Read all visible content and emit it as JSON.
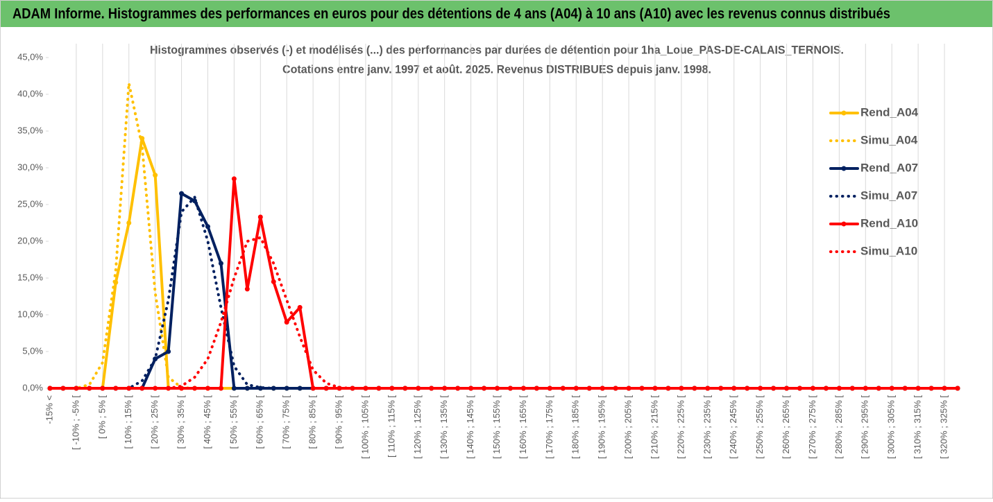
{
  "header": {
    "title": "ADAM Informe. Histogrammes des performances en euros pour des détentions de 4 ans (A04) à 10 ans (A10) avec les revenus connus distribués"
  },
  "chart_data": {
    "type": "line",
    "title": [
      "Histogrammes observés (-) et modélisés (...) des performances par durées de détention pour 1ha_Loue_PAS-DE-CALAIS_TERNOIS.",
      "Cotations entre janv. 1997 et août. 2025. Revenus DISTRIBUES depuis janv. 1998."
    ],
    "categories": [
      "-15% <",
      null,
      "[ -10% ; -5% [",
      null,
      "[ 0% ; 5% [",
      null,
      "[ 10% ; 15% [",
      null,
      "[ 20% ; 25% [",
      null,
      "[ 30% ; 35% [",
      null,
      "[ 40% ; 45% [",
      null,
      "[ 50% ; 55% [",
      null,
      "[ 60% ; 65% [",
      null,
      "[ 70% ; 75% [",
      null,
      "[ 80% ; 85% [",
      null,
      "[ 90% ; 95% [",
      null,
      "[ 100% ; 105% [",
      null,
      "[ 110% ; 115% [",
      null,
      "[ 120% ; 125% [",
      null,
      "[ 130% ; 135% [",
      null,
      "[ 140% ; 145% [",
      null,
      "[ 150% ; 155% [",
      null,
      "[ 160% ; 165% [",
      null,
      "[ 170% ; 175% [",
      null,
      "[ 180% ; 185% [",
      null,
      "[ 190% ; 195% [",
      null,
      "[ 200% ; 205% [",
      null,
      "[ 210% ; 215% [",
      null,
      "[ 220% ; 225% [",
      null,
      "[ 230% ; 235% [",
      null,
      "[ 240% ; 245% [",
      null,
      "[ 250% ; 255% [",
      null,
      "[ 260% ; 265% [",
      null,
      "[ 270% ; 275% [",
      null,
      "[ 280% ; 285% [",
      null,
      "[ 290% ; 295% [",
      null,
      "[ 300% ; 305% [",
      null,
      "[ 310% ; 315% [",
      null,
      "[ 320% ; 325% [",
      null
    ],
    "series": [
      {
        "name": "Rend_A04",
        "color": "#ffc000",
        "dash": false,
        "marker": true,
        "values": [
          0,
          0,
          0,
          0,
          0,
          14.4,
          22.5,
          34,
          29,
          0,
          0,
          0,
          0,
          0,
          0,
          0,
          0,
          0,
          0,
          0,
          0,
          0,
          0,
          0,
          0,
          0,
          0,
          0,
          0,
          0,
          0,
          0,
          0,
          0,
          0,
          0,
          0,
          0,
          0,
          0,
          0,
          0,
          0,
          0,
          0,
          0,
          0,
          0,
          0,
          0,
          0,
          0,
          0,
          0,
          0,
          0,
          0,
          0,
          0,
          0,
          0,
          0,
          0,
          0,
          0,
          0,
          0,
          0,
          0,
          0
        ]
      },
      {
        "name": "Simu_A04",
        "color": "#ffc000",
        "dash": true,
        "marker": false,
        "values": [
          0,
          0,
          0,
          0.5,
          3.5,
          16,
          41.5,
          33,
          13,
          1.5,
          0.1,
          0,
          0,
          0,
          0,
          0,
          0,
          0,
          0,
          0,
          0,
          0,
          0,
          0,
          0,
          0,
          0,
          0,
          0,
          0,
          0,
          0,
          0,
          0,
          0,
          0,
          0,
          0,
          0,
          0,
          0,
          0,
          0,
          0,
          0,
          0,
          0,
          0,
          0,
          0,
          0,
          0,
          0,
          0,
          0,
          0,
          0,
          0,
          0,
          0,
          0,
          0,
          0,
          0,
          0,
          0,
          0,
          0,
          0,
          0
        ]
      },
      {
        "name": "Rend_A07",
        "color": "#002060",
        "dash": false,
        "marker": true,
        "values": [
          0,
          0,
          0,
          0,
          0,
          0,
          0,
          0,
          4,
          5,
          26.5,
          25.5,
          22,
          17,
          0,
          0,
          0,
          0,
          0,
          0,
          0,
          0,
          0,
          0,
          0,
          0,
          0,
          0,
          0,
          0,
          0,
          0,
          0,
          0,
          0,
          0,
          0,
          0,
          0,
          0,
          0,
          0,
          0,
          0,
          0,
          0,
          0,
          0,
          0,
          0,
          0,
          0,
          0,
          0,
          0,
          0,
          0,
          0,
          0,
          0,
          0,
          0,
          0,
          0,
          0,
          0,
          0,
          0,
          0,
          0
        ]
      },
      {
        "name": "Simu_A07",
        "color": "#002060",
        "dash": true,
        "marker": false,
        "values": [
          0,
          0,
          0,
          0,
          0,
          0,
          0,
          1,
          4,
          12,
          24,
          26,
          20,
          11,
          3,
          0.5,
          0.1,
          0,
          0,
          0,
          0,
          0,
          0,
          0,
          0,
          0,
          0,
          0,
          0,
          0,
          0,
          0,
          0,
          0,
          0,
          0,
          0,
          0,
          0,
          0,
          0,
          0,
          0,
          0,
          0,
          0,
          0,
          0,
          0,
          0,
          0,
          0,
          0,
          0,
          0,
          0,
          0,
          0,
          0,
          0,
          0,
          0,
          0,
          0,
          0,
          0,
          0,
          0,
          0,
          0
        ]
      },
      {
        "name": "Rend_A10",
        "color": "#ff0000",
        "dash": false,
        "marker": true,
        "values": [
          0,
          0,
          0,
          0,
          0,
          0,
          0,
          0,
          0,
          0,
          0,
          0,
          0,
          0,
          28.5,
          13.5,
          23.3,
          14.5,
          9,
          11,
          0,
          0,
          0,
          0,
          0,
          0,
          0,
          0,
          0,
          0,
          0,
          0,
          0,
          0,
          0,
          0,
          0,
          0,
          0,
          0,
          0,
          0,
          0,
          0,
          0,
          0,
          0,
          0,
          0,
          0,
          0,
          0,
          0,
          0,
          0,
          0,
          0,
          0,
          0,
          0,
          0,
          0,
          0,
          0,
          0,
          0,
          0,
          0,
          0,
          0
        ]
      },
      {
        "name": "Simu_A10",
        "color": "#ff0000",
        "dash": true,
        "marker": false,
        "values": [
          0,
          0,
          0,
          0,
          0,
          0,
          0,
          0,
          0,
          0,
          0.3,
          1.5,
          4,
          9,
          15,
          20,
          20.5,
          17,
          12,
          7,
          2.5,
          0.7,
          0.1,
          0,
          0,
          0,
          0,
          0,
          0,
          0,
          0,
          0,
          0,
          0,
          0,
          0,
          0,
          0,
          0,
          0,
          0,
          0,
          0,
          0,
          0,
          0,
          0,
          0,
          0,
          0,
          0,
          0,
          0,
          0,
          0,
          0,
          0,
          0,
          0,
          0,
          0,
          0,
          0,
          0,
          0,
          0,
          0,
          0,
          0,
          0
        ]
      }
    ],
    "ylim": [
      0,
      45
    ],
    "yticks": [
      {
        "value": 0,
        "label": "0,0%"
      },
      {
        "value": 5,
        "label": "5,0%"
      },
      {
        "value": 10,
        "label": "10,0%"
      },
      {
        "value": 15,
        "label": "15,0%"
      },
      {
        "value": 20,
        "label": "20,0%"
      },
      {
        "value": 25,
        "label": "25,0%"
      },
      {
        "value": 30,
        "label": "30,0%"
      },
      {
        "value": 35,
        "label": "35,0%"
      },
      {
        "value": 40,
        "label": "40,0%"
      },
      {
        "value": 45,
        "label": "45,0%"
      }
    ],
    "xgrid": true,
    "legend": "right"
  }
}
